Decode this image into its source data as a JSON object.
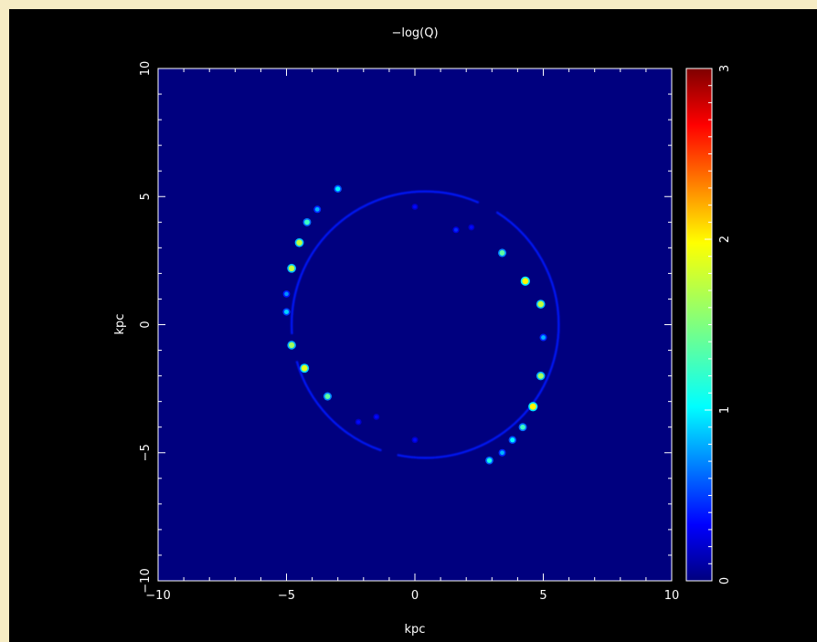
{
  "chart_data": {
    "type": "heatmap",
    "title": "−log(Q)",
    "xlabel": "kpc",
    "ylabel": "kpc",
    "xlim": [
      -10,
      10
    ],
    "ylim": [
      -10,
      10
    ],
    "x_ticks": [
      -10,
      -5,
      0,
      5,
      10
    ],
    "y_ticks": [
      -10,
      -5,
      0,
      5,
      10
    ],
    "x_tick_labels": [
      "−10",
      "−5",
      "0",
      "5",
      "10"
    ],
    "y_tick_labels": [
      "−10",
      "−5",
      "0",
      "5",
      "10"
    ],
    "colorbar": {
      "range": [
        0,
        3
      ],
      "ticks": [
        0,
        1,
        2,
        3
      ],
      "tick_labels": [
        "0",
        "1",
        "2",
        "3"
      ],
      "colormap": "jet"
    },
    "background_value": 0,
    "ring": {
      "center": [
        0.4,
        0.0
      ],
      "radius": 5.2,
      "base_value": 0.45
    },
    "clumps": [
      {
        "x": -3.0,
        "y": 5.3,
        "value": 1.1
      },
      {
        "x": -3.8,
        "y": 4.5,
        "value": 0.9
      },
      {
        "x": -4.2,
        "y": 4.0,
        "value": 1.3
      },
      {
        "x": -4.5,
        "y": 3.2,
        "value": 1.7
      },
      {
        "x": -4.8,
        "y": 2.2,
        "value": 1.7
      },
      {
        "x": -5.0,
        "y": 1.2,
        "value": 0.8
      },
      {
        "x": -5.0,
        "y": 0.5,
        "value": 1.0
      },
      {
        "x": -4.8,
        "y": -0.8,
        "value": 1.6
      },
      {
        "x": -4.3,
        "y": -1.7,
        "value": 1.8
      },
      {
        "x": -3.4,
        "y": -2.8,
        "value": 1.4
      },
      {
        "x": 3.4,
        "y": 2.8,
        "value": 1.4
      },
      {
        "x": 4.3,
        "y": 1.7,
        "value": 1.9
      },
      {
        "x": 4.9,
        "y": 0.8,
        "value": 1.7
      },
      {
        "x": 5.0,
        "y": -0.5,
        "value": 0.9
      },
      {
        "x": 4.9,
        "y": -2.0,
        "value": 1.6
      },
      {
        "x": 4.6,
        "y": -3.2,
        "value": 1.9
      },
      {
        "x": 4.2,
        "y": -4.0,
        "value": 1.3
      },
      {
        "x": 3.8,
        "y": -4.5,
        "value": 1.1
      },
      {
        "x": 3.4,
        "y": -5.0,
        "value": 0.9
      },
      {
        "x": 2.9,
        "y": -5.3,
        "value": 1.2
      },
      {
        "x": 0.0,
        "y": 4.6,
        "value": 0.4
      },
      {
        "x": 1.6,
        "y": 3.7,
        "value": 0.5
      },
      {
        "x": 2.2,
        "y": 3.8,
        "value": 0.4
      },
      {
        "x": -2.2,
        "y": -3.8,
        "value": 0.4
      },
      {
        "x": -1.5,
        "y": -3.6,
        "value": 0.4
      },
      {
        "x": 0.0,
        "y": -4.5,
        "value": 0.4
      }
    ],
    "colors": {
      "background": "#000000",
      "axes": "#ffffff",
      "map_background": "#00007f"
    }
  }
}
